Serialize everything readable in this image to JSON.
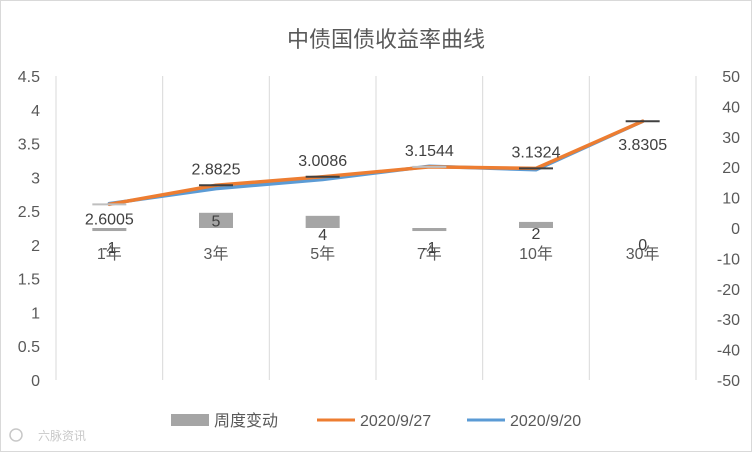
{
  "chart_data": {
    "type": "line",
    "title": "中债国债收益率曲线",
    "categories": [
      "1年",
      "3年",
      "5年",
      "7年",
      "10年",
      "30年"
    ],
    "y_left": {
      "ylim": [
        0,
        4.5
      ],
      "ticks": [
        "0",
        "0.5",
        "1",
        "1.5",
        "2",
        "2.5",
        "3",
        "3.5",
        "4",
        "4.5"
      ]
    },
    "y_right": {
      "ylim": [
        -50,
        50
      ],
      "ticks": [
        "-50",
        "-40",
        "-30",
        "-20",
        "-10",
        "0",
        "10",
        "20",
        "30",
        "40",
        "50"
      ]
    },
    "series": [
      {
        "name": "周度变动",
        "type": "bar",
        "axis": "right",
        "color": "#a5a5a5",
        "values": [
          -1,
          5,
          4,
          -1,
          2,
          0
        ],
        "labels": [
          "-1",
          "5",
          "4",
          "-1",
          "2",
          "0"
        ]
      },
      {
        "name": "2020/9/27",
        "type": "line",
        "axis": "left",
        "color": "#ed7d31",
        "values": [
          2.6005,
          2.8825,
          3.0086,
          3.1544,
          3.1324,
          3.8305
        ],
        "labels": [
          "2.6005",
          "2.8825",
          "3.0086",
          "3.1544",
          "3.1324",
          "3.8305"
        ]
      },
      {
        "name": "2020/9/20",
        "type": "line",
        "axis": "left",
        "color": "#5b9bd5",
        "values": [
          2.6105,
          2.8325,
          2.9686,
          3.1644,
          3.1124,
          3.8305
        ]
      }
    ],
    "legend_position": "bottom",
    "grid": "vertical"
  },
  "watermark": "六脉资讯"
}
